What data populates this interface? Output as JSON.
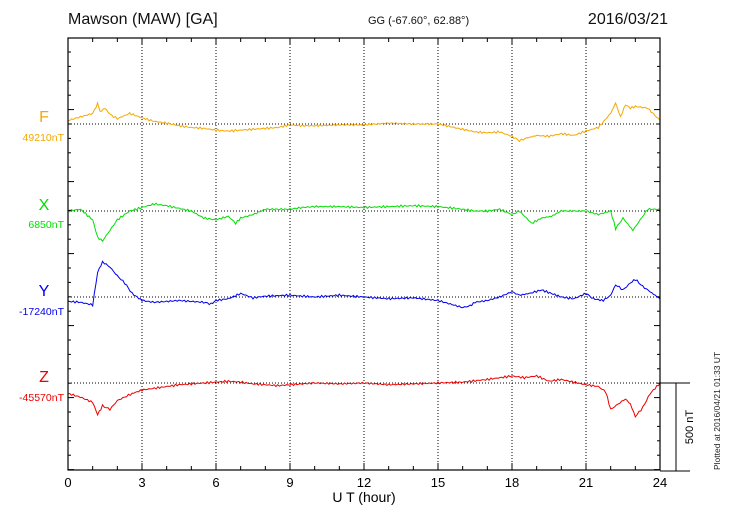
{
  "header": {
    "title": "Mawson (MAW)  [GA]",
    "coordinates": "GG (-67.60°,  62.88°)",
    "date": "2016/03/21"
  },
  "footer": {
    "plotted": "Plotted at 2016/04/21 01:33 UT"
  },
  "colors": {
    "F": "#f5a800",
    "X": "#00e000",
    "Y": "#0000ee",
    "Z": "#ee0000",
    "frame": "#000000"
  },
  "chart_data": {
    "type": "line",
    "title": "",
    "xlabel": "U T (hour)",
    "ylabel": "",
    "xlim": [
      0,
      24
    ],
    "x_ticks": [
      "0",
      "3",
      "6",
      "9",
      "12",
      "15",
      "18",
      "21",
      "24"
    ],
    "grid": true,
    "scale_bar": {
      "label": "500 nT",
      "value_nT": 500
    },
    "series": [
      {
        "name": "F",
        "baseline_label": "49210nT",
        "x": [
          0,
          0.5,
          1,
          1.2,
          1.3,
          1.5,
          1.7,
          2,
          2.5,
          3,
          3.5,
          4,
          4.5,
          5,
          5.5,
          6,
          6.5,
          7,
          7.5,
          8,
          8.5,
          9,
          9.5,
          10,
          11,
          12,
          13,
          14,
          15,
          15.5,
          16,
          16.5,
          17,
          17.5,
          18,
          18.3,
          18.6,
          19,
          19.5,
          20,
          20.5,
          21,
          21.5,
          22,
          22.2,
          22.4,
          22.6,
          22.8,
          23,
          23.5,
          24
        ],
        "values": [
          20,
          40,
          60,
          115,
          70,
          90,
          55,
          30,
          60,
          35,
          15,
          5,
          -10,
          -20,
          -25,
          -35,
          -40,
          -35,
          -30,
          -25,
          -20,
          -5,
          -10,
          -10,
          -5,
          -5,
          5,
          0,
          0,
          -15,
          -30,
          -45,
          -50,
          -45,
          -70,
          -95,
          -80,
          -65,
          -70,
          -55,
          -65,
          -40,
          -20,
          60,
          120,
          40,
          110,
          90,
          100,
          90,
          20
        ],
        "note": "deviation from baseline in nT"
      },
      {
        "name": "X",
        "baseline_label": "6850nT",
        "x": [
          0,
          0.5,
          1,
          1.2,
          1.4,
          1.7,
          2,
          2.5,
          3,
          3.5,
          4,
          5,
          5.5,
          6,
          6.5,
          6.8,
          7,
          7.5,
          8,
          9,
          9.5,
          10,
          11,
          12,
          13,
          14,
          15,
          16,
          16.5,
          17,
          17.5,
          18,
          18.3,
          18.8,
          19.2,
          19.6,
          20,
          21,
          21.5,
          22,
          22.2,
          22.5,
          22.9,
          23.2,
          23.5,
          24
        ],
        "values": [
          0,
          10,
          -50,
          -150,
          -170,
          -110,
          -50,
          0,
          20,
          40,
          30,
          0,
          -40,
          -50,
          -30,
          -70,
          -40,
          -20,
          10,
          10,
          20,
          25,
          25,
          20,
          25,
          30,
          25,
          10,
          0,
          0,
          10,
          -20,
          0,
          -70,
          -40,
          -30,
          0,
          0,
          -20,
          0,
          -100,
          -40,
          -110,
          -50,
          10,
          10
        ],
        "note": "deviation from baseline in nT"
      },
      {
        "name": "Y",
        "baseline_label": "-17240nT",
        "x": [
          0,
          0.5,
          1,
          1.2,
          1.4,
          1.7,
          2,
          2.3,
          2.6,
          3,
          3.5,
          4,
          4.5,
          5,
          5.5,
          5.8,
          6,
          6.5,
          7,
          7.5,
          8,
          9,
          10,
          11,
          12,
          13,
          14,
          15,
          15.5,
          16,
          16.3,
          16.5,
          17,
          17.5,
          18,
          18.3,
          18.7,
          19.2,
          19.6,
          20,
          20.5,
          21,
          21.3,
          21.7,
          22,
          22.2,
          22.5,
          22.8,
          23,
          23.3,
          23.6,
          24
        ],
        "values": [
          -25,
          -30,
          -45,
          140,
          200,
          170,
          120,
          80,
          20,
          -20,
          -30,
          -25,
          -20,
          -25,
          -30,
          -40,
          -20,
          -10,
          20,
          -5,
          5,
          10,
          0,
          10,
          0,
          -10,
          -5,
          -20,
          -40,
          -60,
          -50,
          -30,
          -20,
          0,
          30,
          10,
          20,
          40,
          20,
          0,
          -10,
          20,
          -10,
          -20,
          10,
          70,
          40,
          80,
          100,
          60,
          30,
          -10
        ],
        "note": "deviation from baseline in nT"
      },
      {
        "name": "Z",
        "baseline_label": "-45570nT",
        "x": [
          0,
          0.5,
          1,
          1.2,
          1.4,
          1.7,
          2,
          2.3,
          2.6,
          3,
          3.5,
          4,
          4.5,
          5,
          5.5,
          6,
          6.5,
          7,
          7.5,
          8,
          8.5,
          9,
          10,
          11,
          12,
          13,
          14,
          15,
          16,
          17,
          18,
          18.5,
          19,
          19.5,
          20,
          20.5,
          21,
          21.5,
          21.8,
          22,
          22.3,
          22.6,
          22.8,
          23,
          23.3,
          23.6,
          24
        ],
        "values": [
          -60,
          -80,
          -110,
          -180,
          -130,
          -150,
          -100,
          -80,
          -60,
          -40,
          -30,
          -20,
          -10,
          -5,
          0,
          5,
          10,
          5,
          -5,
          -10,
          -15,
          -10,
          0,
          -5,
          0,
          -10,
          -5,
          0,
          5,
          20,
          40,
          30,
          40,
          10,
          20,
          5,
          -10,
          -20,
          -50,
          -150,
          -120,
          -90,
          -120,
          -190,
          -140,
          -60,
          0
        ],
        "note": "deviation from baseline in nT"
      }
    ]
  }
}
